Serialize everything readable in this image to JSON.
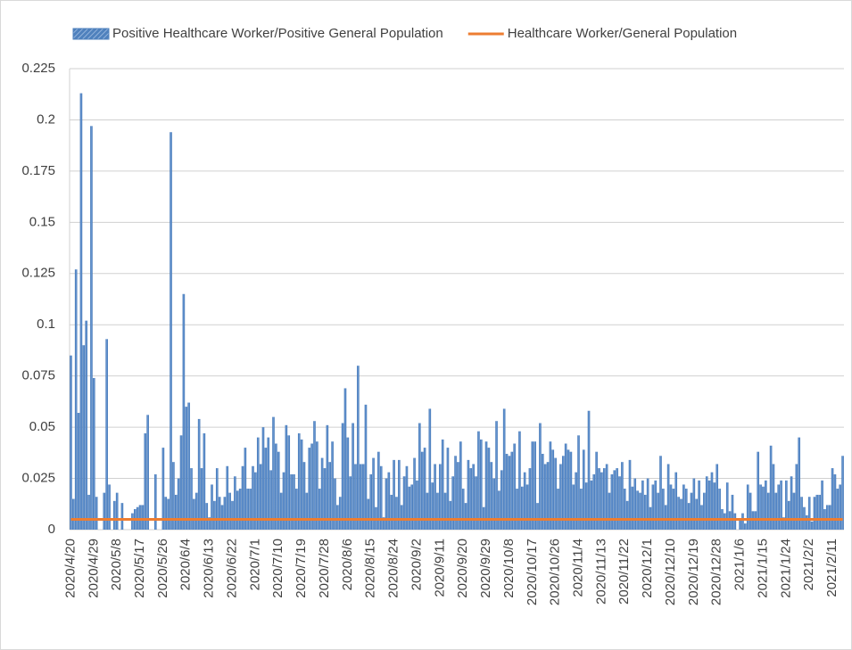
{
  "chart_data": {
    "type": "bar",
    "series": [
      {
        "name": "Positive Healthcare Worker/Positive General Population",
        "color": "#4f81bd",
        "type": "bar",
        "values": [
          0.085,
          0.015,
          0.127,
          0.057,
          0.213,
          0.09,
          0.102,
          0.017,
          0.197,
          0.074,
          0.016,
          0,
          0,
          0.018,
          0.093,
          0.022,
          0,
          0.014,
          0.018,
          0,
          0.013,
          0,
          0,
          0,
          0.008,
          0.01,
          0.011,
          0.012,
          0.012,
          0.047,
          0.056,
          0,
          0,
          0.027,
          0,
          0,
          0.04,
          0.016,
          0.015,
          0.194,
          0.033,
          0.017,
          0.025,
          0.046,
          0.115,
          0.06,
          0.062,
          0.03,
          0.015,
          0.018,
          0.054,
          0.03,
          0.047,
          0.013,
          0.006,
          0.022,
          0.014,
          0.03,
          0.016,
          0.012,
          0.016,
          0.031,
          0.018,
          0.014,
          0.026,
          0.019,
          0.02,
          0.031,
          0.04,
          0.02,
          0.02,
          0.031,
          0.028,
          0.045,
          0.032,
          0.05,
          0.04,
          0.045,
          0.029,
          0.055,
          0.042,
          0.038,
          0.018,
          0.028,
          0.051,
          0.046,
          0.027,
          0.027,
          0.02,
          0.047,
          0.044,
          0.033,
          0.018,
          0.04,
          0.042,
          0.053,
          0.043,
          0.02,
          0.035,
          0.03,
          0.051,
          0.033,
          0.043,
          0.025,
          0.012,
          0.016,
          0.052,
          0.069,
          0.045,
          0.026,
          0.052,
          0.032,
          0.08,
          0.032,
          0.032,
          0.061,
          0.015,
          0.027,
          0.035,
          0.011,
          0.038,
          0.031,
          0.006,
          0.025,
          0.028,
          0.017,
          0.034,
          0.016,
          0.034,
          0.012,
          0.026,
          0.031,
          0.021,
          0.022,
          0.035,
          0.024,
          0.052,
          0.038,
          0.04,
          0.018,
          0.059,
          0.023,
          0.032,
          0.018,
          0.032,
          0.044,
          0.018,
          0.04,
          0.014,
          0.026,
          0.036,
          0.033,
          0.043,
          0.02,
          0.013,
          0.034,
          0.03,
          0.032,
          0.026,
          0.048,
          0.044,
          0.011,
          0.043,
          0.04,
          0.033,
          0.025,
          0.053,
          0.019,
          0.029,
          0.059,
          0.037,
          0.036,
          0.038,
          0.042,
          0.02,
          0.048,
          0.021,
          0.028,
          0.022,
          0.03,
          0.043,
          0.043,
          0.013,
          0.052,
          0.037,
          0.032,
          0.033,
          0.043,
          0.039,
          0.035,
          0.02,
          0.032,
          0.036,
          0.042,
          0.039,
          0.038,
          0.022,
          0.028,
          0.046,
          0.02,
          0.039,
          0.023,
          0.058,
          0.024,
          0.027,
          0.038,
          0.03,
          0.028,
          0.03,
          0.032,
          0.018,
          0.027,
          0.029,
          0.03,
          0.026,
          0.033,
          0.02,
          0.014,
          0.034,
          0.021,
          0.025,
          0.019,
          0.018,
          0.024,
          0.017,
          0.025,
          0.011,
          0.022,
          0.024,
          0.018,
          0.036,
          0.02,
          0.012,
          0.032,
          0.022,
          0.02,
          0.028,
          0.016,
          0.015,
          0.022,
          0.02,
          0.013,
          0.018,
          0.025,
          0.015,
          0.024,
          0.012,
          0.018,
          0.026,
          0.024,
          0.028,
          0.023,
          0.032,
          0.02,
          0.01,
          0.008,
          0.023,
          0.009,
          0.017,
          0.008,
          0,
          0.005,
          0.008,
          0.003,
          0.022,
          0.018,
          0.009,
          0.009,
          0.038,
          0.022,
          0.021,
          0.024,
          0.018,
          0.041,
          0.032,
          0.018,
          0.022,
          0.024,
          0.006,
          0.024,
          0.014,
          0.026,
          0.018,
          0.032,
          0.045,
          0.016,
          0.011,
          0.007,
          0.016,
          0.004,
          0.016,
          0.017,
          0.017,
          0.024,
          0.01,
          0.012,
          0.012,
          0.03,
          0.027,
          0.02,
          0.022,
          0.036
        ]
      },
      {
        "name": "Healthcare Worker/General Population",
        "color": "#ed7d31",
        "type": "line",
        "values": [
          0.005,
          0.005,
          0.005,
          0.005,
          0.005,
          0.005,
          0.005,
          0.005,
          0.005,
          0.005,
          0.005,
          0.005,
          0.005,
          0.005,
          0.005,
          0.005,
          0.005,
          0.005,
          0.005,
          0.005,
          0.005,
          0.005,
          0.005,
          0.005,
          0.005,
          0.005,
          0.005,
          0.005,
          0.005,
          0.005,
          0.005,
          0.005,
          0.005,
          0.005,
          0.005,
          0.005,
          0.005,
          0.005,
          0.005,
          0.005,
          0.005,
          0.005,
          0.005,
          0.005,
          0.005,
          0.005,
          0.005,
          0.005,
          0.005,
          0.005,
          0.005,
          0.005,
          0.005,
          0.005,
          0.005,
          0.005,
          0.005,
          0.005,
          0.005,
          0.005,
          0.005,
          0.005,
          0.005,
          0.005,
          0.005,
          0.005,
          0.005,
          0.005,
          0.005,
          0.005,
          0.005,
          0.005,
          0.005,
          0.005,
          0.005,
          0.005,
          0.005,
          0.005,
          0.005,
          0.005,
          0.005,
          0.005,
          0.005,
          0.005,
          0.005,
          0.005,
          0.005,
          0.005,
          0.005,
          0.005,
          0.005,
          0.005,
          0.005,
          0.005,
          0.005,
          0.005,
          0.005,
          0.005,
          0.005,
          0.005,
          0.005,
          0.005,
          0.005,
          0.005,
          0.005,
          0.005,
          0.005,
          0.005,
          0.005,
          0.005,
          0.005,
          0.005,
          0.005,
          0.005,
          0.005,
          0.005,
          0.005,
          0.005,
          0.005,
          0.005,
          0.005,
          0.005,
          0.005,
          0.005,
          0.005,
          0.005,
          0.005,
          0.005,
          0.005,
          0.005,
          0.005,
          0.005,
          0.005,
          0.005,
          0.005,
          0.005,
          0.005,
          0.005,
          0.005,
          0.005,
          0.005,
          0.005,
          0.005,
          0.005,
          0.005,
          0.005,
          0.005,
          0.005,
          0.005,
          0.005,
          0.005,
          0.005,
          0.005,
          0.005,
          0.005,
          0.005,
          0.005,
          0.005,
          0.005,
          0.005,
          0.005,
          0.005,
          0.005,
          0.005,
          0.005,
          0.005,
          0.005,
          0.005,
          0.005,
          0.005,
          0.005,
          0.005,
          0.005,
          0.005,
          0.005,
          0.005,
          0.005,
          0.005,
          0.005,
          0.005,
          0.005,
          0.005,
          0.005,
          0.005,
          0.005,
          0.005,
          0.005,
          0.005,
          0.005,
          0.005,
          0.005,
          0.005,
          0.005,
          0.005,
          0.005,
          0.005,
          0.005,
          0.005,
          0.005,
          0.005,
          0.005,
          0.005,
          0.005,
          0.005,
          0.005,
          0.005,
          0.005,
          0.005,
          0.005,
          0.005,
          0.005,
          0.005,
          0.005,
          0.005,
          0.005,
          0.005,
          0.005,
          0.005,
          0.005,
          0.005,
          0.005,
          0.005,
          0.005,
          0.005,
          0.005,
          0.005,
          0.005,
          0.005,
          0.005,
          0.005,
          0.005,
          0.005,
          0.005,
          0.005,
          0.005,
          0.005,
          0.005,
          0.005,
          0.005,
          0.005,
          0.005,
          0.005,
          0.005,
          0.005,
          0.005,
          0.005,
          0.005,
          0.005,
          0.005,
          0.005,
          0.005,
          0.005,
          0.005,
          0.005,
          0.005,
          0.005,
          0.005,
          0.005,
          0.005,
          0.005,
          0.005,
          0.005,
          0.005,
          0.005,
          0.005,
          0.005,
          0.005,
          0.005,
          0.005,
          0.005,
          0.005,
          0.005,
          0.005,
          0.005,
          0.005,
          0.005,
          0.005,
          0.005,
          0.005,
          0.005,
          0.005,
          0.005,
          0.005,
          0.005,
          0.005,
          0.005,
          0.005,
          0.005,
          0.005,
          0.005,
          0.005,
          0.005,
          0.005,
          0.005,
          0.005,
          0.005,
          0.005,
          0.005,
          0.005,
          0.005,
          0.005,
          0.005
        ]
      }
    ],
    "categories": [
      "2020/4/20",
      null,
      null,
      null,
      null,
      null,
      null,
      null,
      null,
      "2020/4/29",
      null,
      null,
      null,
      null,
      null,
      null,
      null,
      null,
      "2020/5/8",
      null,
      null,
      null,
      null,
      null,
      null,
      null,
      null,
      "2020/5/17",
      null,
      null,
      null,
      null,
      null,
      null,
      null,
      null,
      "2020/5/26",
      null,
      null,
      null,
      null,
      null,
      null,
      null,
      null,
      "2020/6/4",
      null,
      null,
      null,
      null,
      null,
      null,
      null,
      null,
      "2020/6/13",
      null,
      null,
      null,
      null,
      null,
      null,
      null,
      null,
      "2020/6/22",
      null,
      null,
      null,
      null,
      null,
      null,
      null,
      null,
      "2020/7/1",
      null,
      null,
      null,
      null,
      null,
      null,
      null,
      null,
      "2020/7/10",
      null,
      null,
      null,
      null,
      null,
      null,
      null,
      null,
      "2020/7/19",
      null,
      null,
      null,
      null,
      null,
      null,
      null,
      null,
      "2020/7/28",
      null,
      null,
      null,
      null,
      null,
      null,
      null,
      null,
      "2020/8/6",
      null,
      null,
      null,
      null,
      null,
      null,
      null,
      null,
      "2020/8/15",
      null,
      null,
      null,
      null,
      null,
      null,
      null,
      null,
      "2020/8/24",
      null,
      null,
      null,
      null,
      null,
      null,
      null,
      null,
      "2020/9/2",
      null,
      null,
      null,
      null,
      null,
      null,
      null,
      null,
      "2020/9/11",
      null,
      null,
      null,
      null,
      null,
      null,
      null,
      null,
      "2020/9/20",
      null,
      null,
      null,
      null,
      null,
      null,
      null,
      null,
      "2020/9/29",
      null,
      null,
      null,
      null,
      null,
      null,
      null,
      null,
      "2020/10/8",
      null,
      null,
      null,
      null,
      null,
      null,
      null,
      null,
      "2020/10/17",
      null,
      null,
      null,
      null,
      null,
      null,
      null,
      null,
      "2020/10/26",
      null,
      null,
      null,
      null,
      null,
      null,
      null,
      null,
      "2020/11/4",
      null,
      null,
      null,
      null,
      null,
      null,
      null,
      null,
      "2020/11/13",
      null,
      null,
      null,
      null,
      null,
      null,
      null,
      null,
      "2020/11/22",
      null,
      null,
      null,
      null,
      null,
      null,
      null,
      null,
      "2020/12/1",
      null,
      null,
      null,
      null,
      null,
      null,
      null,
      null,
      "2020/12/10",
      null,
      null,
      null,
      null,
      null,
      null,
      null,
      null,
      "2020/12/19",
      null,
      null,
      null,
      null,
      null,
      null,
      null,
      null,
      "2020/12/28",
      null,
      null,
      null,
      null,
      null,
      null,
      null,
      null,
      "2021/1/6",
      null,
      null,
      null,
      null,
      null,
      null,
      null,
      null,
      "2021/1/15",
      null,
      null,
      null,
      null,
      null,
      null,
      null,
      null,
      "2021/1/24",
      null,
      null,
      null,
      null,
      null,
      null,
      null,
      null,
      "2021/2/2",
      null,
      null,
      null,
      null,
      null,
      null,
      null,
      null,
      "2021/2/11",
      null,
      null,
      null,
      null
    ],
    "ylim": [
      0,
      0.225
    ],
    "yticks": [
      0,
      0.025,
      0.05,
      0.075,
      0.1,
      0.125,
      0.15,
      0.175,
      0.2,
      0.225
    ],
    "grid": true,
    "legend": "top"
  }
}
